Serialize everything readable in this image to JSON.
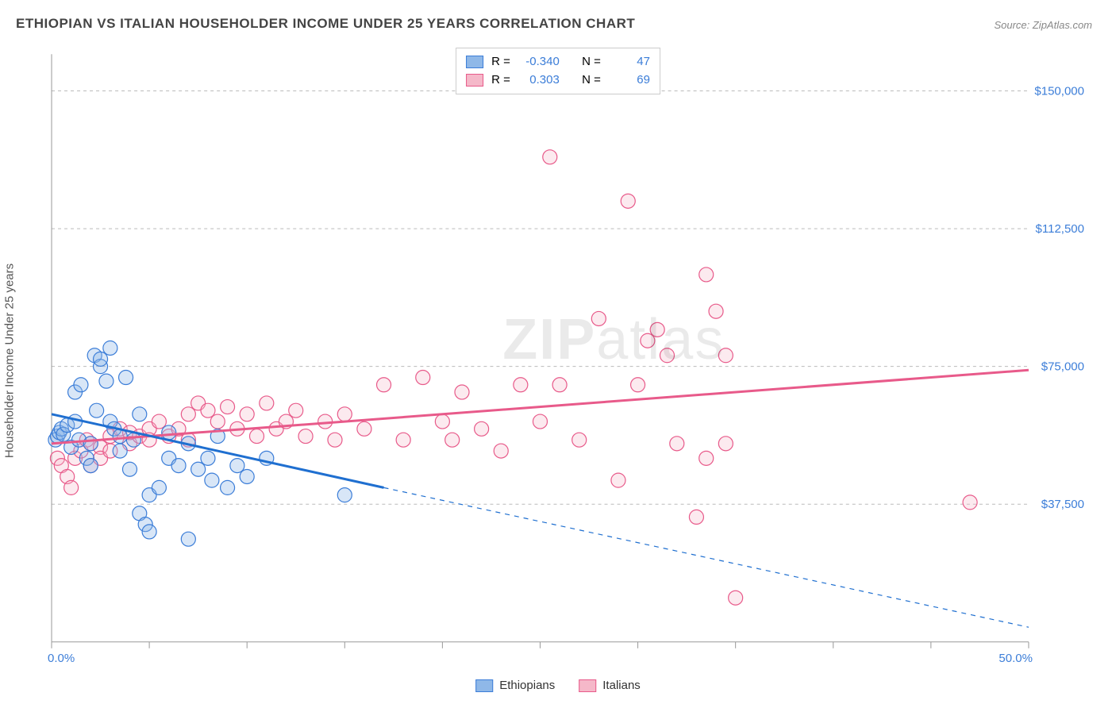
{
  "title": "ETHIOPIAN VS ITALIAN HOUSEHOLDER INCOME UNDER 25 YEARS CORRELATION CHART",
  "source": "Source: ZipAtlas.com",
  "y_axis_label": "Householder Income Under 25 years",
  "watermark_a": "ZIP",
  "watermark_b": "atlas",
  "chart": {
    "type": "scatter",
    "background_color": "#ffffff",
    "grid_color": "#bbbbbb",
    "grid_dash": "4 4",
    "xlim": [
      0,
      50
    ],
    "ylim": [
      0,
      160000
    ],
    "x_ticks": [
      0,
      5,
      10,
      15,
      20,
      25,
      30,
      35,
      40,
      45,
      50
    ],
    "x_tick_labels": {
      "0": "0.0%",
      "50": "50.0%"
    },
    "y_gridlines": [
      37500,
      75000,
      112500,
      150000
    ],
    "y_tick_labels": [
      "$37,500",
      "$75,000",
      "$112,500",
      "$150,000"
    ],
    "point_radius": 9,
    "series_a": {
      "name": "Ethiopians",
      "fill_color": "#8fb8e8",
      "stroke_color": "#3b7dd8",
      "r_value": "-0.340",
      "n_value": "47",
      "trend": {
        "x1": 0,
        "y1": 62000,
        "x2": 17,
        "y2": 42000,
        "dash_x2": 50,
        "dash_y2": 4000,
        "line_color": "#1f6fd0"
      },
      "points": [
        [
          0.2,
          55000
        ],
        [
          0.3,
          56000
        ],
        [
          0.4,
          57000
        ],
        [
          0.5,
          58000
        ],
        [
          0.6,
          56500
        ],
        [
          0.8,
          59000
        ],
        [
          1.0,
          53000
        ],
        [
          1.2,
          60000
        ],
        [
          1.2,
          68000
        ],
        [
          1.4,
          55000
        ],
        [
          1.5,
          70000
        ],
        [
          1.8,
          50000
        ],
        [
          2.0,
          54000
        ],
        [
          2.0,
          48000
        ],
        [
          2.2,
          78000
        ],
        [
          2.5,
          75000
        ],
        [
          2.5,
          77000
        ],
        [
          2.8,
          71000
        ],
        [
          3.0,
          60000
        ],
        [
          3.0,
          80000
        ],
        [
          3.2,
          58000
        ],
        [
          3.5,
          56000
        ],
        [
          3.5,
          52000
        ],
        [
          3.8,
          72000
        ],
        [
          2.3,
          63000
        ],
        [
          4.0,
          47000
        ],
        [
          4.2,
          55000
        ],
        [
          4.5,
          62000
        ],
        [
          4.5,
          35000
        ],
        [
          4.8,
          32000
        ],
        [
          5.0,
          40000
        ],
        [
          5.0,
          30000
        ],
        [
          5.5,
          42000
        ],
        [
          6.0,
          50000
        ],
        [
          6.0,
          57000
        ],
        [
          6.5,
          48000
        ],
        [
          7.0,
          28000
        ],
        [
          7.0,
          54000
        ],
        [
          7.5,
          47000
        ],
        [
          8.0,
          50000
        ],
        [
          8.2,
          44000
        ],
        [
          8.5,
          56000
        ],
        [
          9.0,
          42000
        ],
        [
          9.5,
          48000
        ],
        [
          10.0,
          45000
        ],
        [
          11.0,
          50000
        ],
        [
          15.0,
          40000
        ]
      ]
    },
    "series_b": {
      "name": "Italians",
      "fill_color": "#f5b8c9",
      "stroke_color": "#e85a8a",
      "r_value": "0.303",
      "n_value": "69",
      "trend": {
        "x1": 0,
        "y1": 54000,
        "x2": 50,
        "y2": 74000,
        "line_color": "#e85a8a"
      },
      "points": [
        [
          0.3,
          50000
        ],
        [
          0.5,
          48000
        ],
        [
          0.8,
          45000
        ],
        [
          1.0,
          42000
        ],
        [
          1.2,
          50000
        ],
        [
          1.5,
          52000
        ],
        [
          1.8,
          55000
        ],
        [
          2.0,
          48000
        ],
        [
          2.0,
          54000
        ],
        [
          2.5,
          53000
        ],
        [
          2.5,
          50000
        ],
        [
          3.0,
          56000
        ],
        [
          3.0,
          52000
        ],
        [
          3.5,
          58000
        ],
        [
          4.0,
          54000
        ],
        [
          4.0,
          57000
        ],
        [
          4.5,
          56000
        ],
        [
          5.0,
          58000
        ],
        [
          5.0,
          55000
        ],
        [
          5.5,
          60000
        ],
        [
          6.0,
          56000
        ],
        [
          6.5,
          58000
        ],
        [
          7.0,
          62000
        ],
        [
          7.0,
          55000
        ],
        [
          7.5,
          65000
        ],
        [
          8.0,
          63000
        ],
        [
          8.5,
          60000
        ],
        [
          9.0,
          64000
        ],
        [
          9.5,
          58000
        ],
        [
          10.0,
          62000
        ],
        [
          10.5,
          56000
        ],
        [
          11.0,
          65000
        ],
        [
          11.5,
          58000
        ],
        [
          12.0,
          60000
        ],
        [
          12.5,
          63000
        ],
        [
          13.0,
          56000
        ],
        [
          14.0,
          60000
        ],
        [
          14.5,
          55000
        ],
        [
          15.0,
          62000
        ],
        [
          16.0,
          58000
        ],
        [
          17.0,
          70000
        ],
        [
          18.0,
          55000
        ],
        [
          19.0,
          72000
        ],
        [
          20.0,
          60000
        ],
        [
          20.5,
          55000
        ],
        [
          21.0,
          68000
        ],
        [
          22.0,
          58000
        ],
        [
          23.0,
          52000
        ],
        [
          24.0,
          70000
        ],
        [
          25.0,
          60000
        ],
        [
          25.5,
          132000
        ],
        [
          26.0,
          70000
        ],
        [
          27.0,
          55000
        ],
        [
          28.0,
          88000
        ],
        [
          29.0,
          44000
        ],
        [
          29.5,
          120000
        ],
        [
          30.0,
          70000
        ],
        [
          30.5,
          82000
        ],
        [
          31.0,
          85000
        ],
        [
          31.5,
          78000
        ],
        [
          32.0,
          54000
        ],
        [
          33.0,
          34000
        ],
        [
          33.5,
          50000
        ],
        [
          33.5,
          100000
        ],
        [
          34.0,
          90000
        ],
        [
          34.5,
          78000
        ],
        [
          34.5,
          54000
        ],
        [
          35.0,
          12000
        ],
        [
          47.0,
          38000
        ]
      ]
    }
  },
  "legend_labels": {
    "r": "R =",
    "n": "N ="
  }
}
